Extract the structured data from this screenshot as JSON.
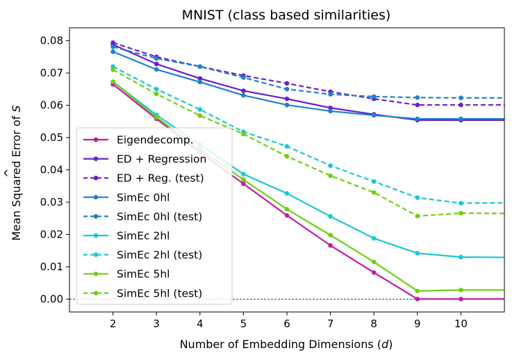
{
  "chart_data": {
    "type": "line",
    "title": "MNIST (class based similarities)",
    "xlabel_prefix": "Number of Embedding Dimensions (",
    "xlabel_var": "d",
    "xlabel_suffix": ")",
    "ylabel_prefix": "Mean Squared Error of ",
    "ylabel_var": "S",
    "ylabel_hat": "^",
    "xlim": [
      1,
      11
    ],
    "ylim": [
      -0.004,
      0.084
    ],
    "xticks": [
      2,
      3,
      4,
      5,
      6,
      7,
      8,
      9,
      10
    ],
    "xtick_labels": [
      "2",
      "3",
      "4",
      "5",
      "6",
      "7",
      "8",
      "9",
      "10"
    ],
    "yticks": [
      0,
      0.01,
      0.02,
      0.03,
      0.04,
      0.05,
      0.06,
      0.07,
      0.08
    ],
    "ytick_labels": [
      "0.00",
      "0.01",
      "0.02",
      "0.03",
      "0.04",
      "0.05",
      "0.06",
      "0.07",
      "0.08"
    ],
    "zero_line": true,
    "legend_position": "lower-left",
    "x": [
      2,
      3,
      4,
      5,
      6,
      7,
      8,
      9,
      10,
      11
    ],
    "series": [
      {
        "name": "Eigendecomp.",
        "color": "#c51b9f",
        "dashed": false,
        "values": [
          0.0665,
          0.0558,
          0.0455,
          0.0357,
          0.0259,
          0.0166,
          0.0082,
          0.0,
          0.0,
          0.0
        ]
      },
      {
        "name": "ED + Regression",
        "color": "#6a1fd1",
        "dashed": false,
        "values": [
          0.0788,
          0.0728,
          0.0683,
          0.0645,
          0.062,
          0.0592,
          0.0572,
          0.0554,
          0.0554,
          0.0554
        ]
      },
      {
        "name": "ED + Reg. (test)",
        "color": "#6a1fd1",
        "dashed": true,
        "values": [
          0.0794,
          0.075,
          0.072,
          0.0692,
          0.0668,
          0.0642,
          0.062,
          0.0601,
          0.0601,
          0.0601
        ]
      },
      {
        "name": "SimEc 0hl",
        "color": "#1f82c8",
        "dashed": false,
        "values": [
          0.0766,
          0.0711,
          0.0672,
          0.0631,
          0.0601,
          0.0582,
          0.0569,
          0.0558,
          0.0558,
          0.0558
        ]
      },
      {
        "name": "SimEc 0hl (test)",
        "color": "#1f82c8",
        "dashed": true,
        "values": [
          0.0781,
          0.0745,
          0.072,
          0.0686,
          0.065,
          0.0634,
          0.0627,
          0.0624,
          0.0623,
          0.0623
        ]
      },
      {
        "name": "SimEc 2hl",
        "color": "#19c8d0",
        "dashed": false,
        "values": [
          0.0673,
          0.057,
          0.0478,
          0.0387,
          0.0327,
          0.0256,
          0.0188,
          0.0142,
          0.013,
          0.0129
        ]
      },
      {
        "name": "SimEc 2hl (test)",
        "color": "#19c8d0",
        "dashed": true,
        "values": [
          0.072,
          0.065,
          0.0587,
          0.0518,
          0.0473,
          0.0413,
          0.0364,
          0.0314,
          0.0297,
          0.0298
        ]
      },
      {
        "name": "SimEc 5hl",
        "color": "#6fcf10",
        "dashed": false,
        "values": [
          0.0673,
          0.0563,
          0.0464,
          0.037,
          0.0278,
          0.0198,
          0.0115,
          0.0025,
          0.0028,
          0.0028
        ]
      },
      {
        "name": "SimEc 5hl (test)",
        "color": "#6fcf10",
        "dashed": true,
        "values": [
          0.071,
          0.0635,
          0.0568,
          0.0511,
          0.0442,
          0.0382,
          0.033,
          0.0257,
          0.0266,
          0.0265
        ]
      }
    ]
  }
}
